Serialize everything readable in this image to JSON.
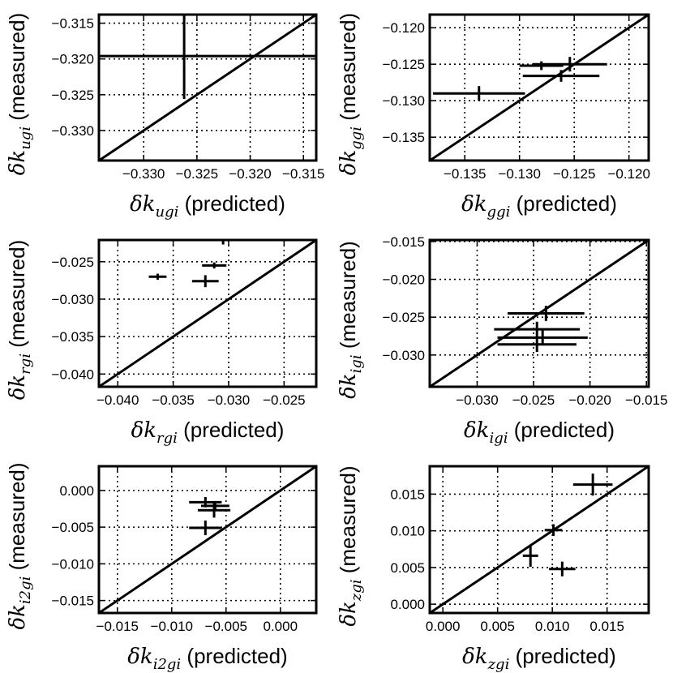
{
  "chart_data": [
    {
      "type": "scatter",
      "xlabel": {
        "symbol": "δk",
        "sub": "ugi",
        "text": " (predicted)"
      },
      "ylabel": {
        "symbol": "δk",
        "sub": "ugi",
        "text": " (measured)"
      },
      "xlim": [
        -0.3342,
        -0.3138
      ],
      "ylim": [
        -0.3342,
        -0.3138
      ],
      "xticks": [
        -0.33,
        -0.325,
        -0.32,
        -0.315
      ],
      "yticks": [
        -0.33,
        -0.325,
        -0.32,
        -0.315
      ],
      "xtick_labels": [
        "−0.330",
        "−0.325",
        "−0.320",
        "−0.315"
      ],
      "ytick_labels": [
        "−0.330",
        "−0.325",
        "−0.320",
        "−0.315"
      ],
      "grid": true,
      "diagonal": true,
      "points": [
        {
          "x": -0.3262,
          "y": -0.3196,
          "xerr": 0.02,
          "yerr": 0.006
        }
      ]
    },
    {
      "type": "scatter",
      "xlabel": {
        "symbol": "δk",
        "sub": "ggi",
        "text": " (predicted)"
      },
      "ylabel": {
        "symbol": "δk",
        "sub": "ggi",
        "text": " (measured)"
      },
      "xlim": [
        -0.1382,
        -0.1182
      ],
      "ylim": [
        -0.1382,
        -0.1182
      ],
      "xticks": [
        -0.135,
        -0.13,
        -0.125,
        -0.12
      ],
      "yticks": [
        -0.135,
        -0.13,
        -0.125,
        -0.12
      ],
      "xtick_labels": [
        "−0.135",
        "−0.130",
        "−0.125",
        "−0.120"
      ],
      "ytick_labels": [
        "−0.135",
        "−0.130",
        "−0.125",
        "−0.120"
      ],
      "grid": true,
      "diagonal": true,
      "points": [
        {
          "x": -0.1337,
          "y": -0.129,
          "xerr": 0.0042,
          "yerr": 0.001
        },
        {
          "x": -0.128,
          "y": -0.1252,
          "xerr": 0.002,
          "yerr": 0.0006
        },
        {
          "x": -0.1254,
          "y": -0.125,
          "xerr": 0.0034,
          "yerr": 0.001
        },
        {
          "x": -0.1262,
          "y": -0.1266,
          "xerr": 0.0035,
          "yerr": 0.0008
        }
      ]
    },
    {
      "type": "scatter",
      "xlabel": {
        "symbol": "δk",
        "sub": "rgi",
        "text": " (predicted)"
      },
      "ylabel": {
        "symbol": "δk",
        "sub": "rgi",
        "text": " (measured)"
      },
      "xlim": [
        -0.0417,
        -0.0221
      ],
      "ylim": [
        -0.0417,
        -0.0221
      ],
      "xticks": [
        -0.04,
        -0.035,
        -0.03,
        -0.025
      ],
      "yticks": [
        -0.04,
        -0.035,
        -0.03,
        -0.025
      ],
      "xtick_labels": [
        "−0.040",
        "−0.035",
        "−0.030",
        "−0.025"
      ],
      "ytick_labels": [
        "−0.040",
        "−0.035",
        "−0.030",
        "−0.025"
      ],
      "grid": true,
      "diagonal": true,
      "points": [
        {
          "x": -0.0364,
          "y": -0.027,
          "xerr": 0.0008,
          "yerr": 0.0004
        },
        {
          "x": -0.0321,
          "y": -0.0276,
          "xerr": 0.0012,
          "yerr": 0.0008
        },
        {
          "x": -0.0313,
          "y": -0.0255,
          "xerr": 0.0011,
          "yerr": 0.0004
        },
        {
          "x": -0.0305,
          "y": -0.0224,
          "xerr": 0.0,
          "yerr": 0.0003
        }
      ]
    },
    {
      "type": "scatter",
      "xlabel": {
        "symbol": "δk",
        "sub": "igi",
        "text": " (predicted)"
      },
      "ylabel": {
        "symbol": "δk",
        "sub": "igi",
        "text": " (measured)"
      },
      "xlim": [
        -0.0342,
        -0.0148
      ],
      "ylim": [
        -0.0342,
        -0.0148
      ],
      "xticks": [
        -0.03,
        -0.025,
        -0.02,
        -0.015
      ],
      "yticks": [
        -0.03,
        -0.025,
        -0.02,
        -0.015
      ],
      "xtick_labels": [
        "−0.030",
        "−0.025",
        "−0.020",
        "−0.015"
      ],
      "ytick_labels": [
        "−0.030",
        "−0.025",
        "−0.020",
        "−0.015"
      ],
      "grid": true,
      "diagonal": true,
      "points": [
        {
          "x": -0.0239,
          "y": -0.0245,
          "xerr": 0.0034,
          "yerr": 0.001
        },
        {
          "x": -0.0247,
          "y": -0.0266,
          "xerr": 0.0038,
          "yerr": 0.001
        },
        {
          "x": -0.0242,
          "y": -0.0277,
          "xerr": 0.004,
          "yerr": 0.001
        },
        {
          "x": -0.0247,
          "y": -0.0286,
          "xerr": 0.0035,
          "yerr": 0.001
        }
      ]
    },
    {
      "type": "scatter",
      "xlabel": {
        "symbol": "δk",
        "sub": "i2gi",
        "text": " (predicted)"
      },
      "ylabel": {
        "symbol": "δk",
        "sub": "i2gi",
        "text": " (measured)"
      },
      "xlim": [
        -0.0167,
        0.0033
      ],
      "ylim": [
        -0.0167,
        0.0033
      ],
      "xticks": [
        -0.015,
        -0.01,
        -0.005,
        0.0
      ],
      "yticks": [
        -0.015,
        -0.01,
        -0.005,
        0.0
      ],
      "xtick_labels": [
        "−0.015",
        "−0.010",
        "−0.005",
        "0.000"
      ],
      "ytick_labels": [
        "−0.015",
        "−0.010",
        "−0.005",
        "0.000"
      ],
      "grid": true,
      "diagonal": true,
      "points": [
        {
          "x": -0.0069,
          "y": -0.0016,
          "xerr": 0.0015,
          "yerr": 0.0007
        },
        {
          "x": -0.006,
          "y": -0.0021,
          "xerr": 0.0013,
          "yerr": 0.0006
        },
        {
          "x": -0.0061,
          "y": -0.0027,
          "xerr": 0.0015,
          "yerr": 0.001
        },
        {
          "x": -0.0069,
          "y": -0.0051,
          "xerr": 0.0015,
          "yerr": 0.001
        }
      ]
    },
    {
      "type": "scatter",
      "xlabel": {
        "symbol": "δk",
        "sub": "zgi",
        "text": " (predicted)"
      },
      "ylabel": {
        "symbol": "δk",
        "sub": "zgi",
        "text": " (measured)"
      },
      "xlim": [
        -0.0012,
        0.0188
      ],
      "ylim": [
        -0.0012,
        0.0188
      ],
      "xticks": [
        0.0,
        0.005,
        0.01,
        0.015
      ],
      "yticks": [
        0.0,
        0.005,
        0.01,
        0.015
      ],
      "xtick_labels": [
        "0.000",
        "0.005",
        "0.010",
        "0.015"
      ],
      "ytick_labels": [
        "0.000",
        "0.005",
        "0.010",
        "0.015"
      ],
      "grid": true,
      "diagonal": true,
      "points": [
        {
          "x": 0.0137,
          "y": 0.0163,
          "xerr": 0.0018,
          "yerr": 0.0015
        },
        {
          "x": 0.0101,
          "y": 0.0101,
          "xerr": 0.0008,
          "yerr": 0.0008
        },
        {
          "x": 0.008,
          "y": 0.0066,
          "xerr": 0.0007,
          "yerr": 0.0015
        },
        {
          "x": 0.0109,
          "y": 0.0048,
          "xerr": 0.0012,
          "yerr": 0.001
        }
      ]
    }
  ]
}
